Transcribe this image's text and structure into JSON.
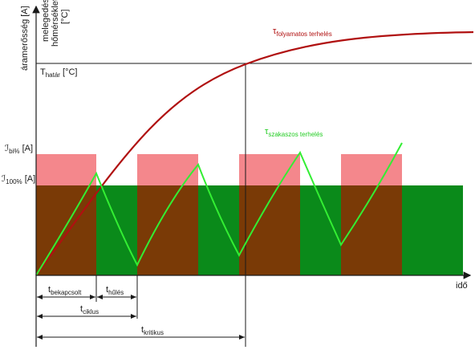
{
  "colors": {
    "axis": "#1a1a1a",
    "brown": "#7a3a06",
    "green_block": "#0a8a1a",
    "pink": "#f4878c",
    "red_curve": "#b01010",
    "green_curve": "#33ee33"
  },
  "labels": {
    "y_axis_current": "áramerősség [A]",
    "y_axis_temp_1": "melegedési",
    "y_axis_temp_2": "hőmérséklet",
    "y_axis_temp_3": "[°C]",
    "t_hatar_main": "T",
    "t_hatar_sub": "határ",
    "t_hatar_unit": " [°C]",
    "i_bi_main": "ℐ",
    "i_bi_sub": "bi%",
    "i_bi_unit": " [A]",
    "i_100_main": "ℐ",
    "i_100_sub": "100%",
    "i_100_unit": " [A]",
    "tau_folyamatos_main": "τ",
    "tau_folyamatos_sub": "folyamatos terhelés",
    "tau_szakaszos_main": "τ",
    "tau_szakaszos_sub": "szakaszos terhelés",
    "x_axis": "idő",
    "t_bekapcsolt_main": "t",
    "t_bekapcsolt_sub": "bekapcsolt",
    "t_hules_main": "t",
    "t_hules_sub": "hűlés",
    "t_ciklus_main": "t",
    "t_ciklus_sub": "ciklus",
    "t_kritikus_main": "t",
    "t_kritikus_sub": "kritikus"
  }
}
